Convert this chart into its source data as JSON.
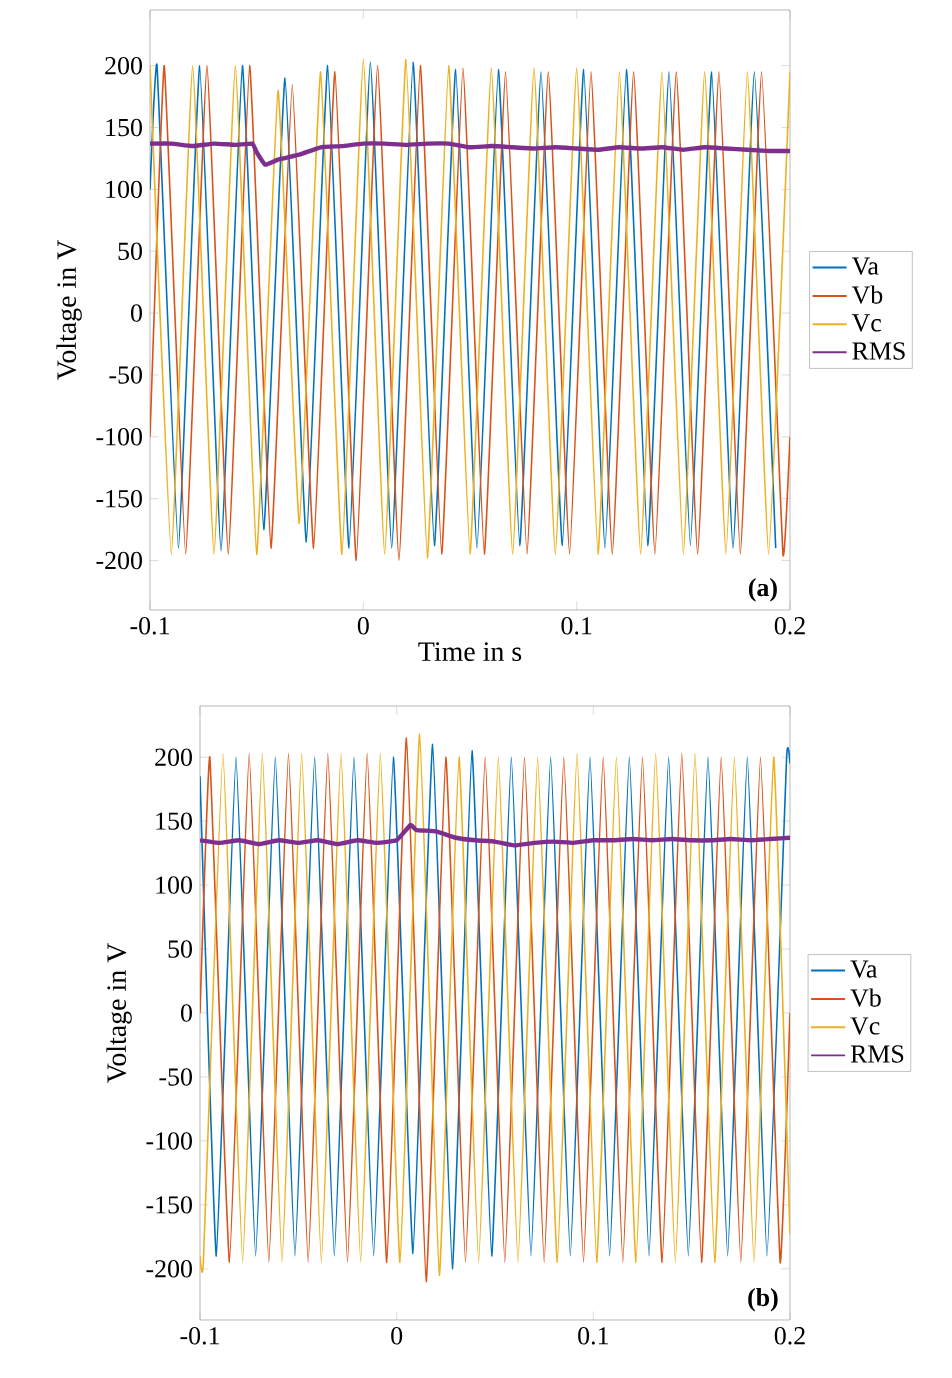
{
  "chart_data": [
    {
      "type": "line",
      "xlabel": "Time in s",
      "ylabel": "Voltage in V",
      "annotations": [
        "(a)"
      ],
      "xlim": [
        -0.1,
        0.2
      ],
      "ylim": [
        -240,
        245
      ],
      "xticks": [
        -0.1,
        0,
        0.1,
        0.2
      ],
      "yticks": [
        -200,
        -150,
        -100,
        -50,
        0,
        50,
        100,
        150,
        200
      ],
      "legend": "right",
      "marker": "none",
      "line_style": "solid",
      "grid": false,
      "series": [
        {
          "name": "Va",
          "color": "#0072bd",
          "x": [
            -0.1,
            -0.0967,
            -0.0867,
            -0.0767,
            -0.0667,
            -0.0567,
            -0.0467,
            -0.0367,
            -0.0267,
            -0.0167,
            -0.0067,
            0.0033,
            0.0133,
            0.0233,
            0.0333,
            0.0433,
            0.0533,
            0.0633,
            0.0733,
            0.0833,
            0.0933,
            0.1033,
            0.1133,
            0.1233,
            0.1333,
            0.1433,
            0.1533,
            0.1633,
            0.1733,
            0.1833,
            0.1933
          ],
          "values": [
            100,
            200,
            -190,
            200,
            -192,
            200,
            -175,
            190,
            -185,
            200,
            -190,
            203,
            -190,
            203,
            -188,
            197,
            -190,
            197,
            -188,
            195,
            -188,
            197,
            -190,
            197,
            -188,
            195,
            -188,
            195,
            -190,
            195,
            -190
          ]
        },
        {
          "name": "Vb",
          "color": "#d95319",
          "x": [
            -0.1,
            -0.0933,
            -0.0833,
            -0.0733,
            -0.0633,
            -0.0533,
            -0.0433,
            -0.0333,
            -0.0233,
            -0.0133,
            -0.0033,
            0.0067,
            0.0167,
            0.0267,
            0.0367,
            0.0467,
            0.0567,
            0.0667,
            0.0767,
            0.0867,
            0.0967,
            0.1067,
            0.1167,
            0.1267,
            0.1367,
            0.1467,
            0.1567,
            0.1667,
            0.1767,
            0.1867,
            0.1967,
            0.2
          ],
          "values": [
            -100,
            200,
            -195,
            200,
            -195,
            200,
            -190,
            185,
            -190,
            195,
            -200,
            200,
            -200,
            200,
            -195,
            198,
            -195,
            195,
            -195,
            195,
            -195,
            195,
            -195,
            195,
            -195,
            195,
            -195,
            195,
            -195,
            195,
            -195,
            -100
          ]
        },
        {
          "name": "Vc",
          "color": "#edb120",
          "x": [
            -0.1,
            -0.09,
            -0.08,
            -0.07,
            -0.06,
            -0.05,
            -0.04,
            -0.03,
            -0.02,
            -0.01,
            0,
            0.01,
            0.02,
            0.03,
            0.04,
            0.05,
            0.06,
            0.07,
            0.08,
            0.09,
            0.1,
            0.11,
            0.12,
            0.13,
            0.14,
            0.15,
            0.16,
            0.17,
            0.18,
            0.19,
            0.2
          ],
          "values": [
            200,
            -195,
            200,
            -195,
            200,
            -195,
            180,
            -170,
            195,
            -195,
            205,
            -195,
            205,
            -198,
            200,
            -195,
            198,
            -195,
            198,
            -195,
            198,
            -195,
            195,
            -195,
            195,
            -195,
            195,
            -195,
            195,
            -195,
            195
          ]
        },
        {
          "name": "RMS",
          "color": "#7e2f8e",
          "x": [
            -0.1,
            -0.09,
            -0.08,
            -0.07,
            -0.06,
            -0.052,
            -0.05,
            -0.046,
            -0.04,
            -0.03,
            -0.02,
            -0.01,
            0,
            0.01,
            0.02,
            0.03,
            0.04,
            0.05,
            0.06,
            0.07,
            0.08,
            0.09,
            0.1,
            0.11,
            0.12,
            0.13,
            0.14,
            0.15,
            0.16,
            0.17,
            0.18,
            0.19,
            0.2
          ],
          "values": [
            137,
            137,
            135,
            137,
            136,
            137,
            130,
            120,
            124,
            128,
            134,
            135,
            137,
            137,
            136,
            137,
            137,
            134,
            135,
            134,
            133,
            134,
            133,
            132,
            134,
            133,
            134,
            132,
            134,
            133,
            132,
            131,
            131
          ]
        }
      ]
    },
    {
      "type": "line",
      "ylabel": "Voltage in V",
      "annotations": [
        "(b)"
      ],
      "xlim": [
        -0.1,
        0.2
      ],
      "ylim": [
        -240,
        240
      ],
      "xticks": [
        -0.1,
        0,
        0.1,
        0.2
      ],
      "yticks": [
        -200,
        -150,
        -100,
        -50,
        0,
        50,
        100,
        150,
        200
      ],
      "legend": "right",
      "marker": "none",
      "line_style": "solid",
      "grid": false,
      "series": [
        {
          "name": "Va",
          "color": "#0072bd",
          "x": [
            -0.1,
            -0.0917,
            -0.0817,
            -0.0717,
            -0.0617,
            -0.0517,
            -0.0417,
            -0.0317,
            -0.0217,
            -0.0117,
            -0.0017,
            0.0083,
            0.0183,
            0.0283,
            0.0383,
            0.0483,
            0.0583,
            0.0683,
            0.0783,
            0.0883,
            0.0983,
            0.1083,
            0.1183,
            0.1283,
            0.1383,
            0.1483,
            0.1583,
            0.1683,
            0.1783,
            0.1883,
            0.1983,
            0.2
          ],
          "values": [
            185,
            -190,
            200,
            -190,
            200,
            -190,
            200,
            -190,
            200,
            -190,
            200,
            -188,
            210,
            -200,
            205,
            -190,
            200,
            -190,
            200,
            -190,
            200,
            -190,
            200,
            -190,
            200,
            -190,
            200,
            -190,
            200,
            -190,
            200,
            195
          ]
        },
        {
          "name": "Vb",
          "color": "#d95319",
          "x": [
            -0.1,
            -0.095,
            -0.085,
            -0.075,
            -0.065,
            -0.055,
            -0.045,
            -0.035,
            -0.025,
            -0.015,
            -0.005,
            0.005,
            0.015,
            0.025,
            0.035,
            0.045,
            0.055,
            0.065,
            0.075,
            0.085,
            0.095,
            0.105,
            0.115,
            0.125,
            0.135,
            0.145,
            0.155,
            0.165,
            0.175,
            0.185,
            0.195,
            0.2
          ],
          "values": [
            0,
            200,
            -195,
            203,
            -195,
            203,
            -195,
            203,
            -195,
            203,
            -195,
            215,
            -210,
            200,
            -195,
            200,
            -195,
            200,
            -195,
            200,
            -195,
            200,
            -195,
            200,
            -195,
            203,
            -195,
            200,
            -195,
            200,
            -195,
            0
          ]
        },
        {
          "name": "Vc",
          "color": "#edb120",
          "x": [
            -0.1,
            -0.0983,
            -0.0883,
            -0.0783,
            -0.0683,
            -0.0583,
            -0.0483,
            -0.0383,
            -0.0283,
            -0.0183,
            -0.0083,
            0.0017,
            0.0117,
            0.0217,
            0.0317,
            0.0417,
            0.0517,
            0.0617,
            0.0717,
            0.0817,
            0.0917,
            0.1017,
            0.1117,
            0.1217,
            0.1317,
            0.1417,
            0.1517,
            0.1617,
            0.1717,
            0.1817,
            0.1917,
            0.2
          ],
          "values": [
            -190,
            -195,
            203,
            -195,
            203,
            -195,
            203,
            -195,
            203,
            -195,
            203,
            -195,
            218,
            -205,
            200,
            -195,
            200,
            -195,
            200,
            -195,
            203,
            -195,
            200,
            -195,
            203,
            -195,
            203,
            -195,
            200,
            -195,
            200,
            -173
          ]
        },
        {
          "name": "RMS",
          "color": "#7e2f8e",
          "x": [
            -0.1,
            -0.09,
            -0.08,
            -0.07,
            -0.06,
            -0.05,
            -0.04,
            -0.03,
            -0.02,
            -0.01,
            0,
            0.007,
            0.01,
            0.02,
            0.03,
            0.04,
            0.05,
            0.06,
            0.07,
            0.08,
            0.09,
            0.1,
            0.11,
            0.12,
            0.13,
            0.14,
            0.15,
            0.16,
            0.17,
            0.18,
            0.19,
            0.2
          ],
          "values": [
            135,
            133,
            135,
            132,
            135,
            133,
            135,
            132,
            135,
            133,
            135,
            147,
            143,
            142,
            137,
            135,
            134,
            131,
            133,
            134,
            133,
            135,
            135,
            136,
            135,
            136,
            135,
            135,
            136,
            135,
            136,
            137
          ]
        }
      ]
    }
  ]
}
